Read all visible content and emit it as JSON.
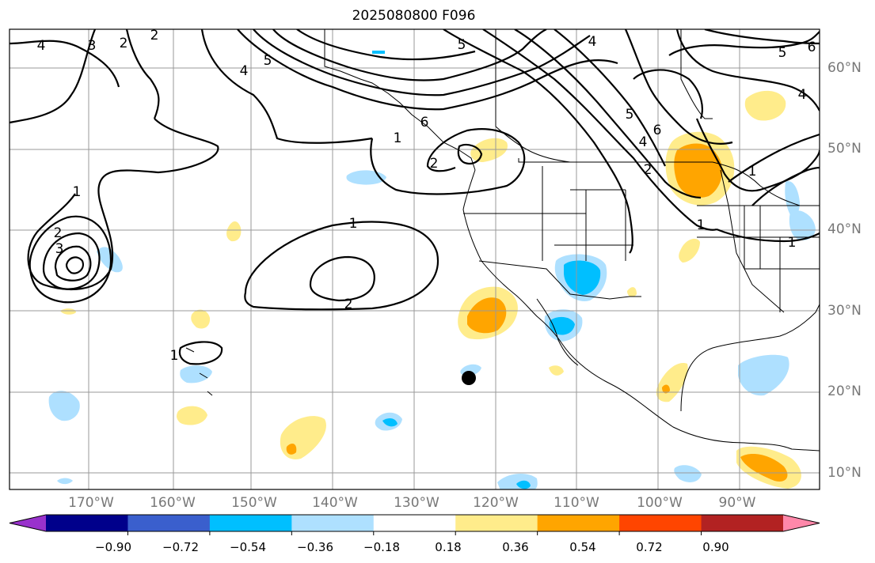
{
  "title": "2025080800 F096",
  "lat_labels": [
    "60°N",
    "50°N",
    "40°N",
    "30°N",
    "20°N",
    "10°N"
  ],
  "lon_labels": [
    "170°W",
    "160°W",
    "150°W",
    "140°W",
    "130°W",
    "120°W",
    "110°W",
    "100°W",
    "90°W"
  ],
  "colorbar": {
    "colors": [
      "#9932cc",
      "#00008b",
      "#3a5fcd",
      "#00bfff",
      "#aee0ff",
      "#ffffff",
      "#ffec8b",
      "#ffa500",
      "#ff4500",
      "#b22222",
      "#ff88aa"
    ],
    "ticks": [
      "−0.90",
      "−0.72",
      "−0.54",
      "−0.36",
      "−0.18",
      "0.18",
      "0.36",
      "0.54",
      "0.72",
      "0.90"
    ]
  },
  "contour_labels": [
    "4",
    "3",
    "2",
    "2",
    "1",
    "3",
    "2",
    "1",
    "2",
    "1",
    "5",
    "4",
    "5",
    "4",
    "6",
    "5",
    "6",
    "4",
    "5",
    "4",
    "6",
    "2",
    "1",
    "2",
    "1",
    "1",
    "1"
  ]
}
